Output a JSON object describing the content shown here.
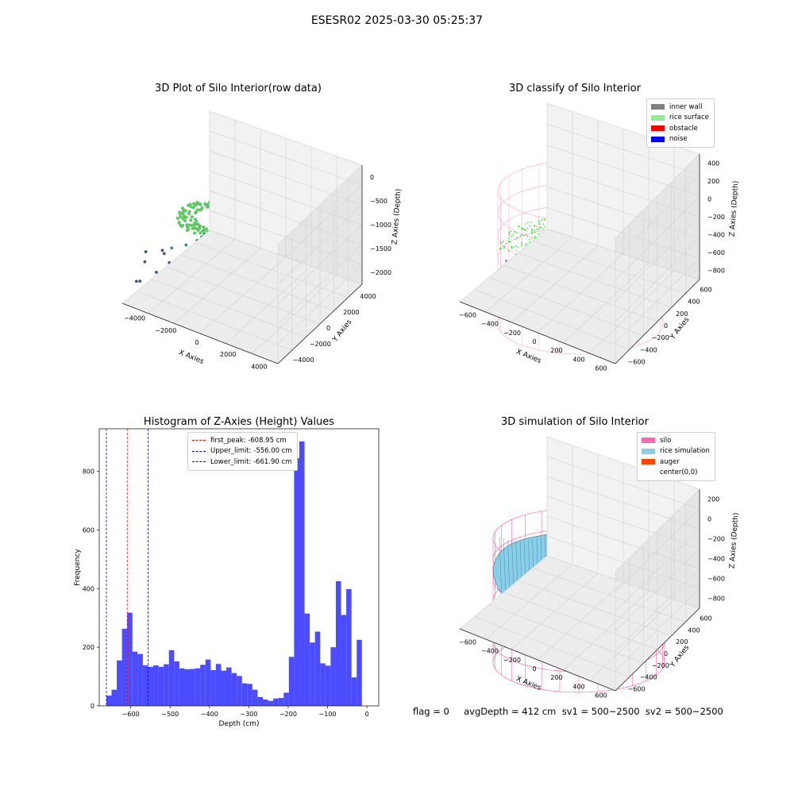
{
  "suptitle": "ESESR02 2025-03-30 05:25:37",
  "colors": {
    "silo": "#ff69b4",
    "rice": "#87ceeb",
    "auger": "#ff4500",
    "wall": "#808080",
    "surface": "#90ee90",
    "obstacle": "#ff0000",
    "noise": "#0000ff",
    "hist": "#4b4bff"
  },
  "plot_raw": {
    "title": "3D Plot of Silo Interior(row data)",
    "xlabel": "X Axies",
    "ylabel": "Y Axies",
    "zlabel": "Z Axies (Depth)",
    "xticks": [
      "−4000",
      "−2000",
      "0",
      "2000",
      "4000"
    ],
    "yticks": [
      "−4000",
      "−2000",
      "0",
      "2000",
      "4000"
    ],
    "zticks": [
      "0",
      "−500",
      "−1000",
      "−1500",
      "−2000"
    ]
  },
  "plot_classify": {
    "title": "3D classify of Silo Interior",
    "xlabel": "X Axies",
    "ylabel": "Y Axies",
    "zlabel": "Z Axies (Depth)",
    "xticks": [
      "−600",
      "−400",
      "−200",
      "0",
      "200",
      "400",
      "600"
    ],
    "yticks": [
      "−600",
      "−400",
      "−200",
      "0",
      "200",
      "400",
      "600"
    ],
    "zticks": [
      "400",
      "200",
      "0",
      "−200",
      "−400",
      "−600",
      "−800"
    ],
    "legend": [
      {
        "label": "inner wall",
        "color": "#808080"
      },
      {
        "label": "rice surface",
        "color": "#90ee90"
      },
      {
        "label": "obstacle",
        "color": "#ff0000"
      },
      {
        "label": "noise",
        "color": "#0000ff"
      }
    ]
  },
  "plot_sim": {
    "title": "3D simulation of Silo Interior",
    "xlabel": "X Axies",
    "ylabel": "Y Axies",
    "zlabel": "Z Axies (Depth)",
    "xticks": [
      "−600",
      "−400",
      "−200",
      "0",
      "200",
      "400",
      "600"
    ],
    "yticks": [
      "−600",
      "−400",
      "−200",
      "0",
      "200",
      "400",
      "600"
    ],
    "zticks": [
      "200",
      "0",
      "−200",
      "−400",
      "−600",
      "−800"
    ],
    "legend": [
      {
        "label": "silo",
        "color": "#ff69b4"
      },
      {
        "label": "rice simulation",
        "color": "#87ceeb"
      },
      {
        "label": "auger",
        "color": "#ff4500"
      },
      {
        "label": "center(0,0)",
        "color": ""
      }
    ]
  },
  "footer": "flag = 0     avgDepth = 412 cm  sv1 = 500~2500  sv2 = 500~2500",
  "chart_data": {
    "type": "bar",
    "title": "Histogram of Z-Axies (Height) Values",
    "xlabel": "Depth (cm)",
    "ylabel": "Frequency",
    "xlim": [
      -680,
      30
    ],
    "ylim": [
      0,
      945
    ],
    "xticks": [
      -600,
      -500,
      -400,
      -300,
      -200,
      -100,
      0
    ],
    "xtick_labels": [
      "−600",
      "−500",
      "−400",
      "−300",
      "−200",
      "−100",
      "0"
    ],
    "yticks": [
      0,
      200,
      400,
      600,
      800
    ],
    "bin_start": -662,
    "bin_width": 13.25,
    "values": [
      35,
      55,
      155,
      263,
      318,
      185,
      177,
      138,
      133,
      138,
      133,
      142,
      190,
      152,
      128,
      125,
      126,
      128,
      140,
      158,
      122,
      143,
      120,
      131,
      112,
      102,
      77,
      75,
      55,
      30,
      22,
      17,
      25,
      27,
      45,
      167,
      845,
      902,
      315,
      216,
      253,
      145,
      137,
      200,
      425,
      310,
      398,
      97,
      225
    ],
    "vlines": [
      {
        "label": "first_peak: -608.95 cm",
        "x": -608.95,
        "color": "#ff0000"
      },
      {
        "label": "Upper_limit: -556.00 cm",
        "x": -556.0,
        "color": "#0000ff"
      },
      {
        "label": "Lower_limit: -661.90 cm",
        "x": -661.9,
        "color": "#0000ff"
      }
    ]
  }
}
